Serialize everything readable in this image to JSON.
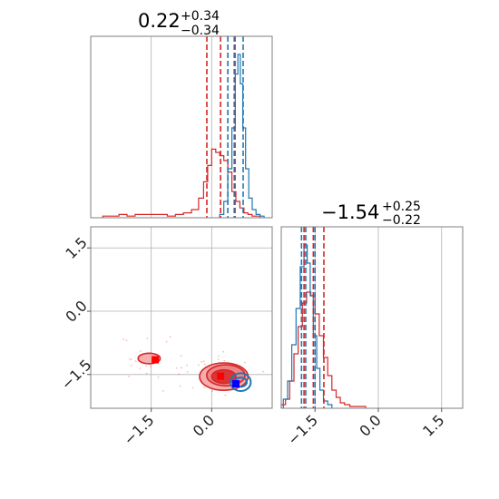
{
  "colors": {
    "primary": "#d62728",
    "secondary": "#1f77b4",
    "primary_point": "#ff0000",
    "secondary_point": "#0000ff",
    "grid": "#b0b0b0",
    "frame": "#7f7f7f"
  },
  "chart_data": {
    "type": "corner",
    "grid": true,
    "parameters": [
      "param_0",
      "param_1"
    ],
    "titles": [
      {
        "value": "0.22",
        "plus": "+0.34",
        "minus": "−0.34"
      },
      {
        "value": "−1.54",
        "plus": "+0.25",
        "minus": "−0.22"
      }
    ],
    "x_ticks": {
      "param_0": [
        {
          "value": -1.5,
          "label": "−1.5"
        },
        {
          "value": 0.0,
          "label": "0.0"
        }
      ],
      "param_1": [
        {
          "value": -1.5,
          "label": "−1.5"
        },
        {
          "value": 0.0,
          "label": "0.0"
        },
        {
          "value": 1.5,
          "label": "1.5"
        }
      ]
    },
    "y_ticks": {
      "param_1": [
        {
          "value": 1.5,
          "label": "1.5"
        },
        {
          "value": 0.0,
          "label": "0.0"
        },
        {
          "value": -1.5,
          "label": "−1.5"
        }
      ]
    },
    "ranges": {
      "param_0": [
        -3.0,
        1.5
      ],
      "param_1": [
        -2.3,
        2.0
      ]
    },
    "hist_param_0": {
      "primary": {
        "x": [
          -2.6,
          -2.4,
          -2.2,
          -2.0,
          -1.8,
          -1.6,
          -1.4,
          -1.2,
          -1.0,
          -0.8,
          -0.6,
          -0.4,
          -0.25,
          -0.15,
          -0.05,
          0.05,
          0.15,
          0.25,
          0.35,
          0.45,
          0.55,
          0.65,
          0.75,
          0.85,
          0.95,
          1.05,
          1.15
        ],
        "y": [
          0.01,
          0.01,
          0.02,
          0.01,
          0.02,
          0.02,
          0.02,
          0.02,
          0.01,
          0.02,
          0.03,
          0.05,
          0.12,
          0.22,
          0.32,
          0.42,
          0.4,
          0.38,
          0.35,
          0.28,
          0.16,
          0.1,
          0.06,
          0.03,
          0.02,
          0.01,
          0.01
        ]
      },
      "secondary": {
        "x": [
          0.25,
          0.35,
          0.45,
          0.55,
          0.62,
          0.68,
          0.74,
          0.8,
          0.88,
          0.96,
          1.05,
          1.15,
          1.25
        ],
        "y": [
          0.02,
          0.1,
          0.3,
          0.55,
          0.88,
          1.0,
          0.82,
          0.55,
          0.3,
          0.12,
          0.05,
          0.02,
          0.01
        ]
      }
    },
    "hist_param_1": {
      "primary": {
        "x": [
          -2.25,
          -2.15,
          -2.05,
          -1.95,
          -1.85,
          -1.75,
          -1.65,
          -1.55,
          -1.45,
          -1.35,
          -1.25,
          -1.15,
          -1.05,
          -0.95,
          -0.85,
          -0.75,
          -0.6,
          -0.4
        ],
        "y": [
          0.02,
          0.05,
          0.15,
          0.3,
          0.45,
          0.58,
          0.64,
          0.62,
          0.52,
          0.4,
          0.28,
          0.18,
          0.1,
          0.06,
          0.03,
          0.02,
          0.01,
          0.01
        ]
      },
      "secondary": {
        "x": [
          -2.2,
          -2.1,
          -2.0,
          -1.9,
          -1.8,
          -1.72,
          -1.65,
          -1.58,
          -1.5,
          -1.42,
          -1.35,
          -1.25,
          -1.15
        ],
        "y": [
          0.05,
          0.15,
          0.35,
          0.55,
          0.78,
          0.9,
          0.8,
          0.62,
          0.4,
          0.22,
          0.1,
          0.04,
          0.02
        ]
      }
    },
    "quantile_lines": {
      "param_0": {
        "primary": [
          -0.12,
          0.22,
          0.56
        ],
        "secondary": [
          0.4,
          0.58,
          0.78
        ]
      },
      "param_1": {
        "primary": [
          -1.76,
          -1.54,
          -1.29
        ],
        "secondary": [
          -1.82,
          -1.72,
          -1.5
        ]
      }
    },
    "contours_2d": {
      "primary": [
        {
          "cx": 0.3,
          "cy": -1.55,
          "rx": 1.2,
          "ry": 0.65
        },
        {
          "cx": 0.35,
          "cy": -1.52,
          "rx": 0.95,
          "ry": 0.5
        },
        {
          "cx": 0.3,
          "cy": -1.55,
          "rx": 0.6,
          "ry": 0.32
        },
        {
          "cx": -1.55,
          "cy": -1.12,
          "rx": 0.55,
          "ry": 0.25
        }
      ],
      "secondary": [
        {
          "cx": 0.72,
          "cy": -1.68,
          "rx": 0.5,
          "ry": 0.42
        },
        {
          "cx": 0.72,
          "cy": -1.68,
          "rx": 0.3,
          "ry": 0.22
        }
      ]
    },
    "markers_2d": {
      "primary": [
        [
          0.22,
          -1.54
        ],
        [
          -1.4,
          -1.15
        ]
      ],
      "secondary": [
        [
          0.6,
          -1.72
        ]
      ]
    }
  }
}
